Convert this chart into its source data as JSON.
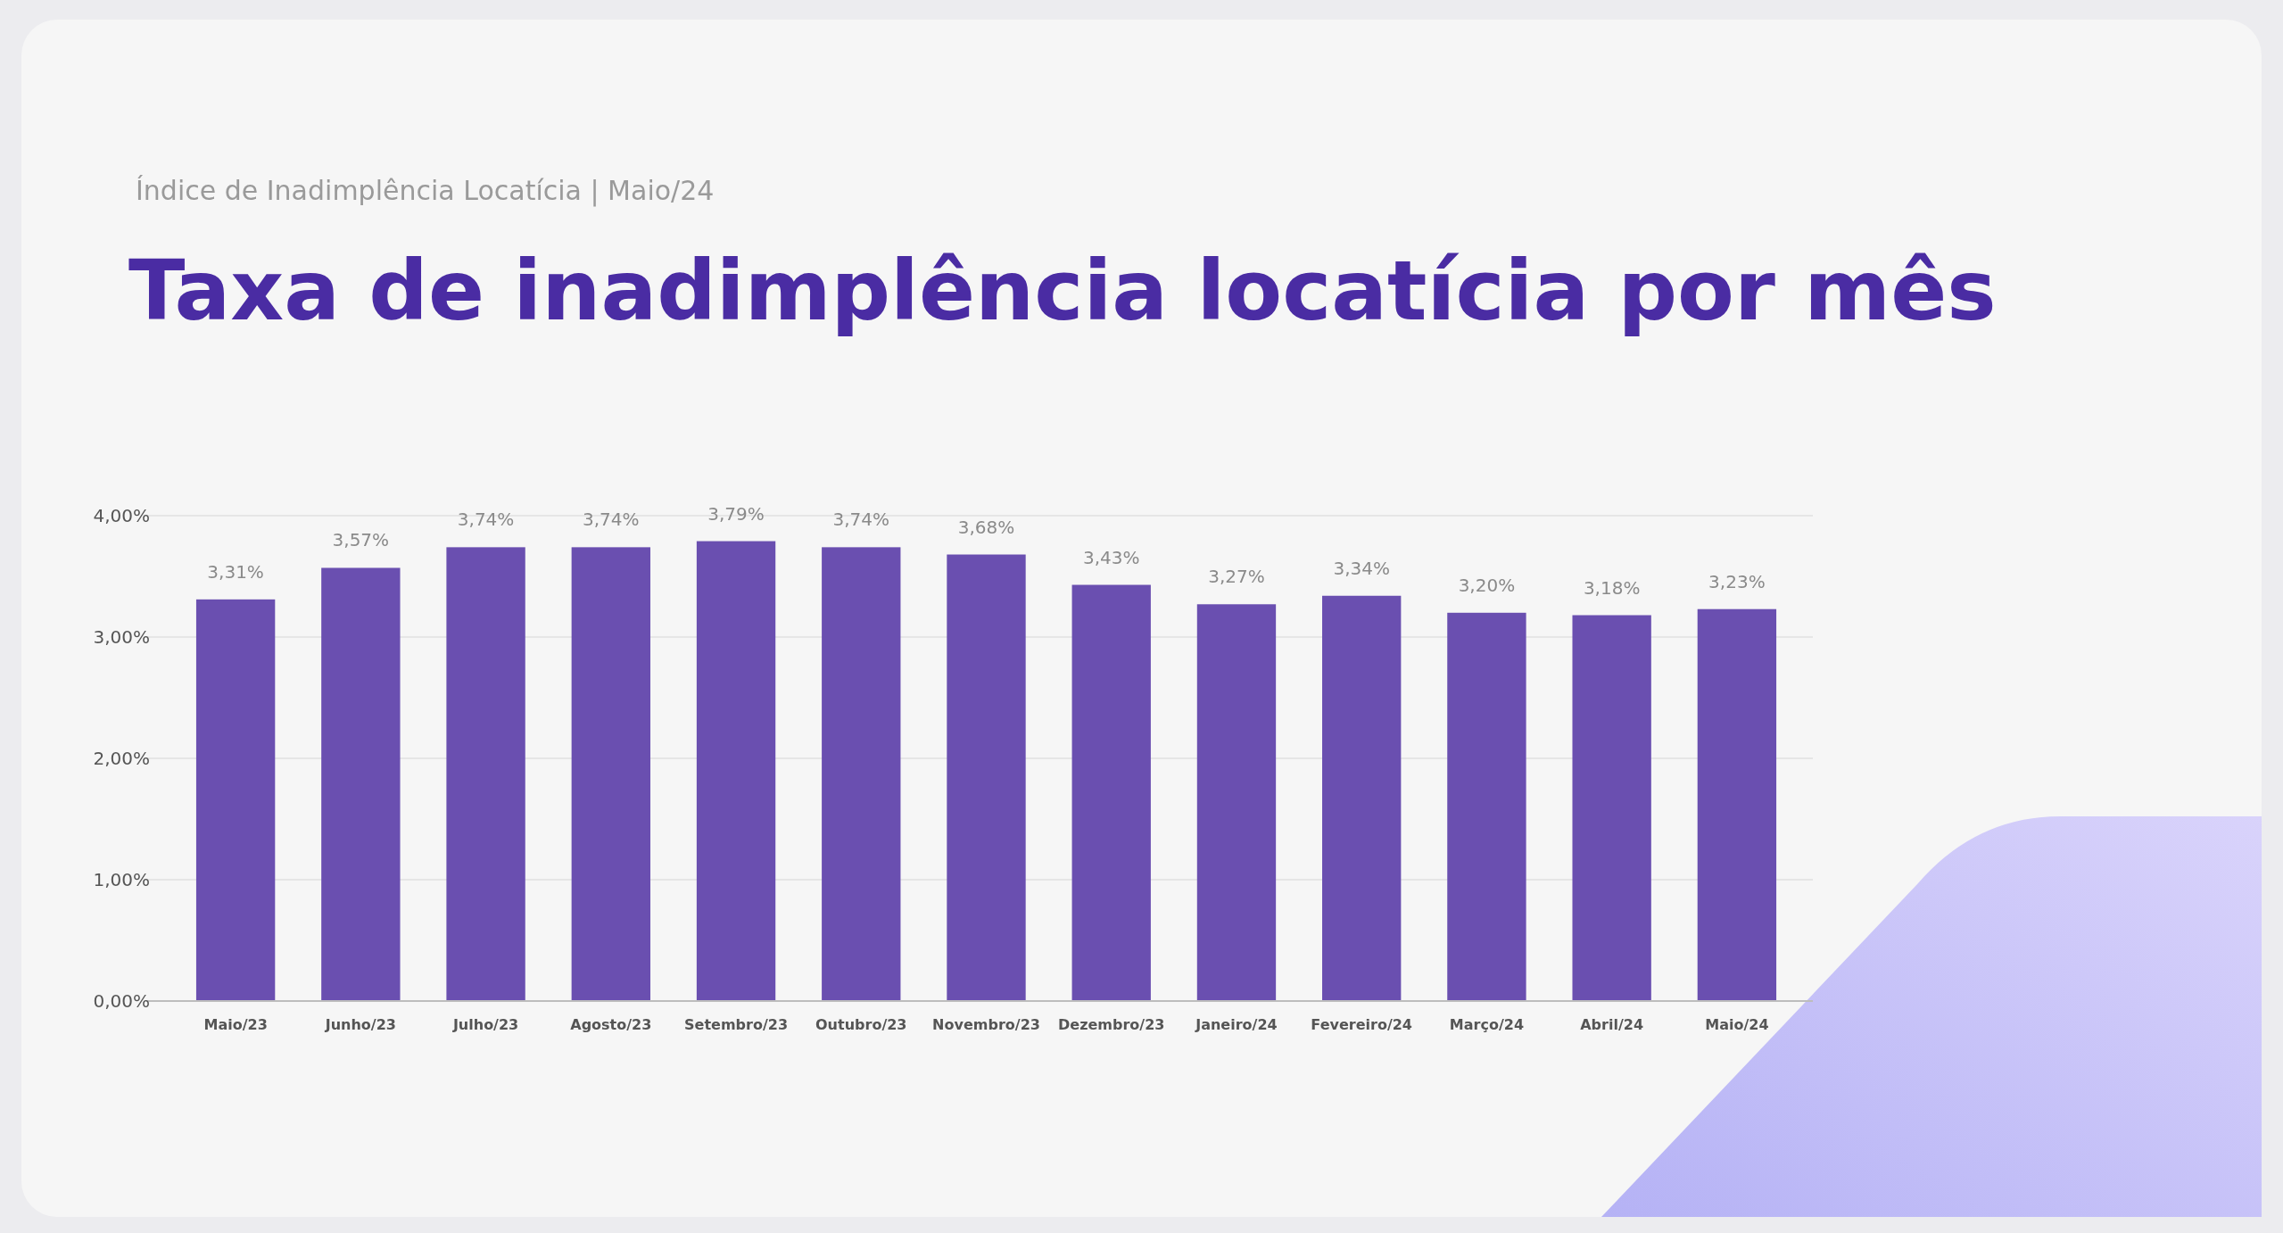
{
  "chart_data": {
    "type": "bar",
    "title": "Taxa de inadimplência locatícia por mês",
    "subtitle": "Índice de Inadimplência Locatícia | Maio/24",
    "categories": [
      "Maio/23",
      "Junho/23",
      "Julho/23",
      "Agosto/23",
      "Setembro/23",
      "Outubro/23",
      "Novembro/23",
      "Dezembro/23",
      "Janeiro/24",
      "Fevereiro/24",
      "Março/24",
      "Abril/24",
      "Maio/24"
    ],
    "values": [
      3.31,
      3.57,
      3.74,
      3.74,
      3.79,
      3.74,
      3.68,
      3.43,
      3.27,
      3.34,
      3.2,
      3.18,
      3.23
    ],
    "value_labels": [
      "3,31%",
      "3,57%",
      "3,74%",
      "3,74%",
      "3,79%",
      "3,74%",
      "3,68%",
      "3,43%",
      "3,27%",
      "3,34%",
      "3,20%",
      "3,18%",
      "3,23%"
    ],
    "color": "#6a4fb0",
    "ylim": [
      0,
      4
    ],
    "yticks": [
      {
        "value": 0,
        "label": "0,00%"
      },
      {
        "value": 1,
        "label": "1,00%"
      },
      {
        "value": 2,
        "label": "2,00%"
      },
      {
        "value": 3,
        "label": "3,00%"
      },
      {
        "value": 4,
        "label": "4,00%"
      }
    ],
    "grid": "y"
  }
}
